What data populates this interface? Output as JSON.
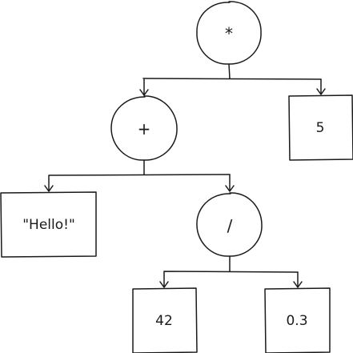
{
  "nodes": {
    "root": {
      "shape": "circle",
      "text": "*"
    },
    "plus": {
      "shape": "circle",
      "text": "+"
    },
    "five": {
      "shape": "box",
      "text": "5"
    },
    "hello": {
      "shape": "box",
      "text": "\"Hello!\""
    },
    "divide": {
      "shape": "circle",
      "text": "/"
    },
    "fortytwo": {
      "shape": "box",
      "text": "42"
    },
    "pointthree": {
      "shape": "box",
      "text": "0.3"
    }
  },
  "edges": [
    {
      "from": "root",
      "to": "plus"
    },
    {
      "from": "root",
      "to": "five"
    },
    {
      "from": "plus",
      "to": "hello"
    },
    {
      "from": "plus",
      "to": "divide"
    },
    {
      "from": "divide",
      "to": "fortytwo"
    },
    {
      "from": "divide",
      "to": "pointthree"
    }
  ],
  "style": {
    "stroke_color": "#1a1a1a",
    "background": "#ffffff"
  }
}
